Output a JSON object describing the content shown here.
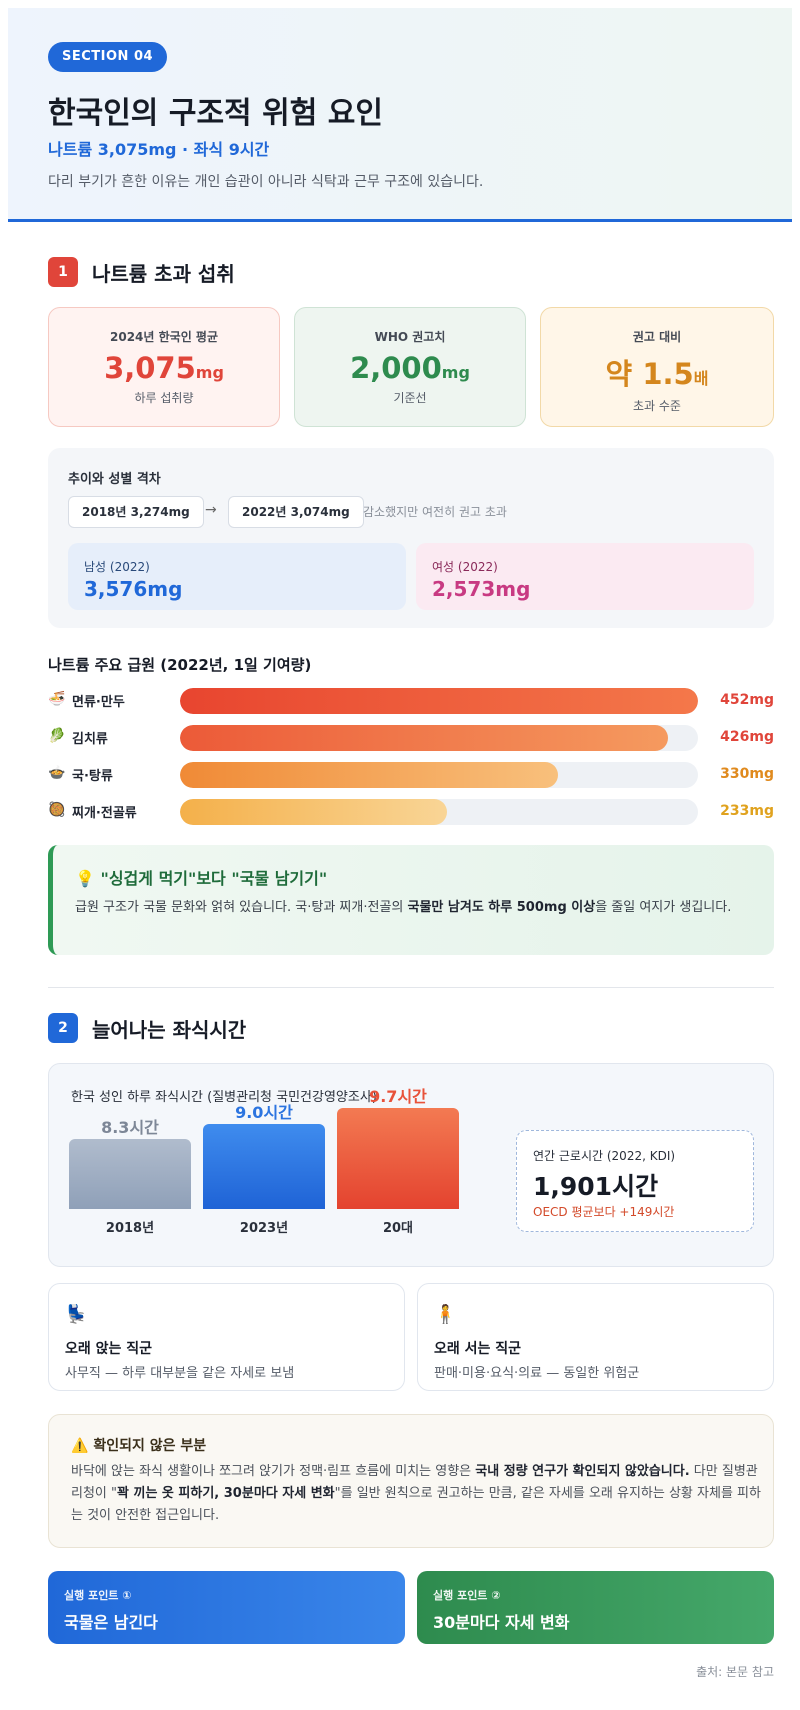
{
  "header": {
    "section_label": "SECTION 04",
    "title": "한국인의 구조적 위험 요인",
    "subtitle": "나트륨 3,075mg · 좌식 9시간",
    "description": "다리 부기가 흔한 이유는 개인 습관이 아니라 식탁과 근무 구조에 있습니다."
  },
  "section1": {
    "number": "1",
    "title": "나트륨 초과 섭취",
    "stats": [
      {
        "label": "2024년 한국인 평균",
        "value": "3,075",
        "unit": "mg",
        "caption": "하루 섭취량",
        "color": "#e0453a"
      },
      {
        "label": "WHO 권고치",
        "value": "2,000",
        "unit": "mg",
        "caption": "기준선",
        "color": "#2e8b4e"
      },
      {
        "label": "권고 대비",
        "value": "약 1.5",
        "unit": "배",
        "caption": "초과 수준",
        "color": "#d4861d"
      }
    ],
    "trend": {
      "title": "추이와 성별 격차",
      "from": "2018년 3,274mg",
      "arrow": "→",
      "to": "2022년 3,074mg",
      "note": "감소했지만 여전히 권고 초과",
      "male_label": "남성 (2022)",
      "male_value": "3,576mg",
      "female_label": "여성 (2022)",
      "female_value": "2,573mg"
    },
    "sources": {
      "title": "나트륨 주요 급원 (2022년, 1일 기여량)",
      "items": [
        {
          "icon": "🍜",
          "name": "면류·만두",
          "value": 452,
          "label": "452mg",
          "color": "#e0453a"
        },
        {
          "icon": "🥬",
          "name": "김치류",
          "value": 426,
          "label": "426mg",
          "color": "#e0453a"
        },
        {
          "icon": "🍲",
          "name": "국·탕류",
          "value": 330,
          "label": "330mg",
          "color": "#e08a1e"
        },
        {
          "icon": "🥘",
          "name": "찌개·전골류",
          "value": 233,
          "label": "233mg",
          "color": "#e0a21e"
        }
      ],
      "max": 452
    },
    "tip": {
      "icon": "💡",
      "title": "\"싱겁게 먹기\"보다 \"국물 남기기\"",
      "body_1": "급원 구조가 국물 문화와 얽혀 있습니다. 국·탕과 찌개·전골의 ",
      "body_bold": "국물만 남겨도 하루 500mg 이상",
      "body_2": "을 줄일 여지가 생깁니다."
    }
  },
  "section2": {
    "number": "2",
    "title": "늘어나는 좌식시간",
    "chart_title": "한국 성인 하루 좌식시간 (질병관리청 국민건강영양조사)",
    "chart_data": {
      "type": "bar",
      "categories": [
        "2018년",
        "2023년",
        "20대"
      ],
      "values": [
        8.3,
        9.0,
        9.7
      ],
      "labels": [
        "8.3시간",
        "9.0시간",
        "9.7시간"
      ],
      "colors": [
        "#8fa0b8",
        "#2b74e0",
        "#e8523a"
      ]
    },
    "work": {
      "label": "연간 근로시간 (2022, KDI)",
      "value": "1,901시간",
      "note": "OECD 평균보다 +149시간"
    },
    "jobs": [
      {
        "icon": "💺",
        "title": "오래 앉는 직군",
        "desc": "사무직 — 하루 대부분을 같은 자세로 보냄"
      },
      {
        "icon": "🧍",
        "title": "오래 서는 직군",
        "desc": "판매·미용·요식·의료 — 동일한 위험군"
      }
    ],
    "warning": {
      "icon": "⚠️",
      "title": "확인되지 않은 부분",
      "body_1": "바닥에 앉는 좌식 생활이나 쪼그려 앉기가 정맥·림프 흐름에 미치는 영향은 ",
      "body_bold_1": "국내 정량 연구가 확인되지 않았습니다.",
      "body_2": " 다만 질병관리청이 \"",
      "body_bold_2": "꽉 끼는 옷 피하기, 30분마다 자세 변화",
      "body_3": "\"를 일반 원칙으로 권고하는 만큼, 같은 자세를 오래 유지하는 상황 자체를 피하는 것이 안전한 접근입니다."
    },
    "actions": [
      {
        "label": "실행 포인트 ①",
        "text": "국물은 남긴다"
      },
      {
        "label": "실행 포인트 ②",
        "text": "30분마다 자세 변화"
      }
    ]
  },
  "footer": {
    "source": "출처: 본문 참고"
  }
}
